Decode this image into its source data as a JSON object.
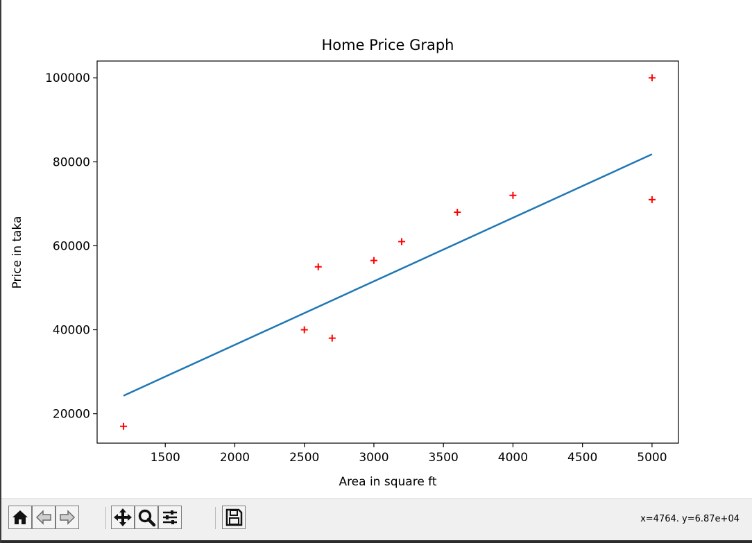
{
  "chart_data": {
    "type": "scatter",
    "title": "Home Price Graph",
    "xlabel": "Area in square ft",
    "ylabel": "Price in taka",
    "xlim": [
      1010,
      5190
    ],
    "ylim": [
      13000,
      104000
    ],
    "xticks": [
      1500,
      2000,
      2500,
      3000,
      3500,
      4000,
      4500,
      5000
    ],
    "yticks": [
      20000,
      40000,
      60000,
      80000,
      100000
    ],
    "grid": false,
    "series": [
      {
        "kind": "scatter",
        "marker": "+",
        "color": "#ff0000",
        "x": [
          1200,
          2500,
          2600,
          2700,
          3000,
          3200,
          3600,
          4000,
          5000,
          5000
        ],
        "y": [
          17000,
          40000,
          55000,
          38000,
          56500,
          61000,
          68000,
          72000,
          100000,
          71000
        ]
      },
      {
        "kind": "line",
        "color": "#1f77b4",
        "x": [
          1200,
          5000
        ],
        "y": [
          24300,
          81800
        ]
      }
    ]
  },
  "toolbar": {
    "buttons": [
      {
        "name": "home-button",
        "icon": "home-icon"
      },
      {
        "name": "back-button",
        "icon": "arrow-left-icon"
      },
      {
        "name": "forward-button",
        "icon": "arrow-right-icon"
      },
      {
        "name": "pan-button",
        "icon": "move-icon"
      },
      {
        "name": "zoom-button",
        "icon": "magnifier-icon"
      },
      {
        "name": "configure-subplots-button",
        "icon": "sliders-icon"
      },
      {
        "name": "save-button",
        "icon": "floppy-disk-icon"
      }
    ],
    "coordinate_readout": "x=4764. y=6.87e+04"
  }
}
